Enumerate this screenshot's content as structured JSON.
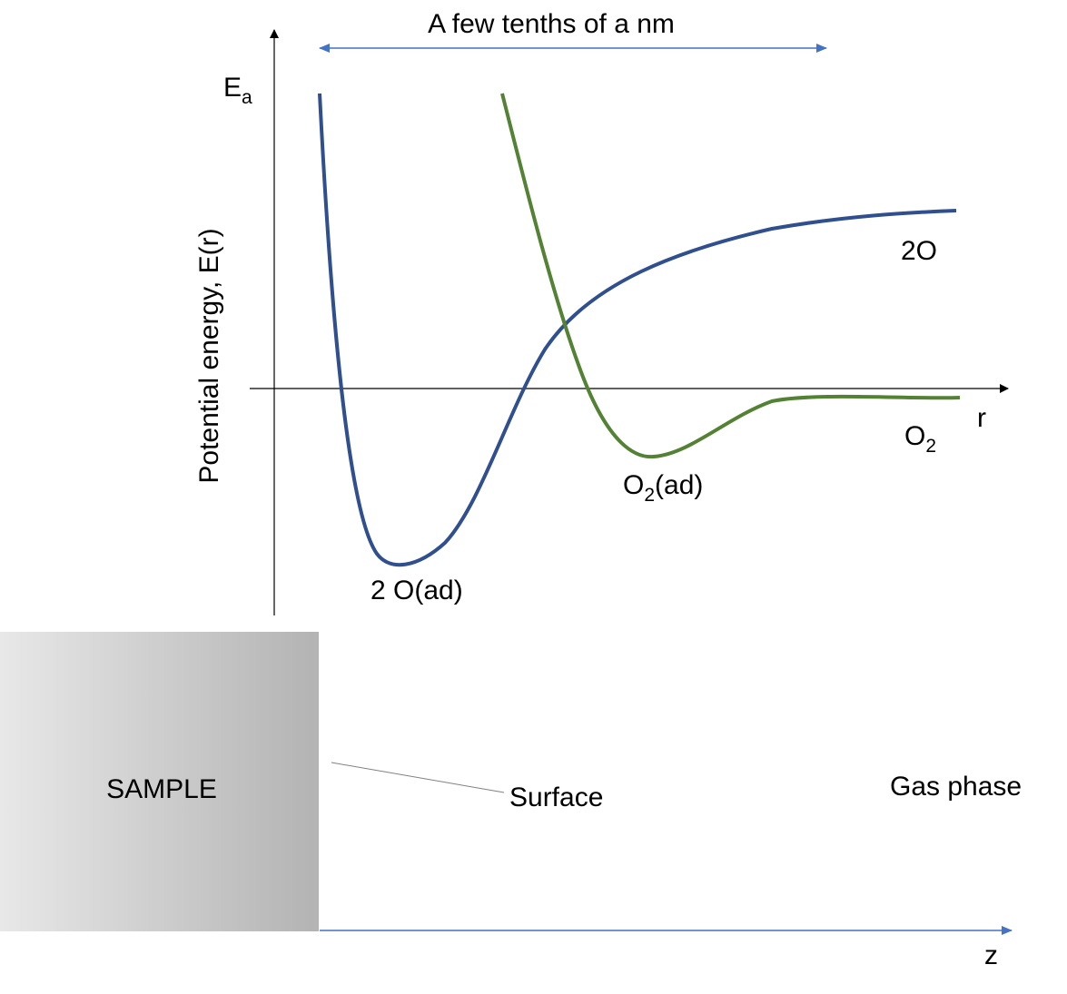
{
  "span_label": "A few tenths of a nm",
  "axes": {
    "y_label": "Potential energy, E(r)",
    "activation": {
      "base": "E",
      "sub": "a"
    },
    "x_label": "r",
    "z_label": "z"
  },
  "curves": [
    {
      "label": "2O"
    },
    {
      "label": {
        "base": "O",
        "sub": "2"
      }
    }
  ],
  "minima": [
    {
      "label": "2 O(ad)"
    },
    {
      "label": {
        "base": "O",
        "sub": "2",
        "rest": "(ad)"
      }
    }
  ],
  "regions": {
    "sample": "SAMPLE",
    "surface": "Surface",
    "gas_phase": "Gas phase"
  }
}
